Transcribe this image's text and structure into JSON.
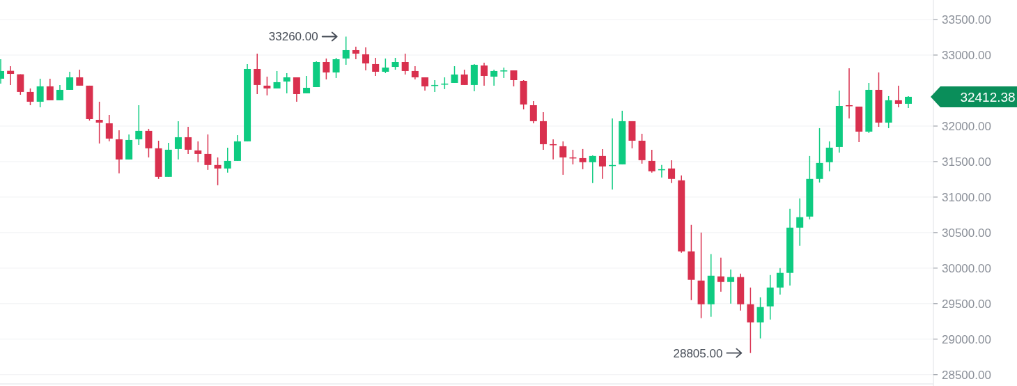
{
  "chart_data": {
    "type": "candlestick",
    "categories": [
      null,
      null,
      null,
      null,
      null,
      null,
      null,
      null,
      null,
      null,
      null,
      null,
      null,
      null,
      null,
      null,
      null,
      null,
      null,
      null,
      null,
      null,
      null,
      null,
      null,
      null,
      null,
      null,
      null,
      null,
      null,
      null,
      null,
      null,
      null,
      null,
      null,
      null,
      null,
      null,
      null,
      null,
      null,
      null,
      null,
      null,
      null,
      null,
      null,
      null,
      null,
      null,
      null,
      null,
      null,
      null,
      null,
      null,
      null,
      null,
      null,
      null,
      null,
      null,
      null,
      null,
      null,
      null,
      null,
      null,
      null,
      null,
      null,
      null,
      null,
      null,
      null,
      null,
      null,
      null,
      null,
      null,
      null,
      null,
      null,
      null,
      null,
      null,
      null,
      null,
      null,
      null,
      null
    ],
    "ohlc": [
      [
        32667,
        32941,
        32598,
        32775
      ],
      [
        32778,
        32843,
        32579,
        32735
      ],
      [
        32729,
        32729,
        32441,
        32481
      ],
      [
        32481,
        32530,
        32294,
        32343
      ],
      [
        32343,
        32667,
        32265,
        32559
      ],
      [
        32559,
        32667,
        32363,
        32363
      ],
      [
        32363,
        32579,
        32363,
        32510
      ],
      [
        32510,
        32765,
        32510,
        32686
      ],
      [
        32686,
        32794,
        32569,
        32569
      ],
      [
        32569,
        32569,
        32078,
        32098
      ],
      [
        32088,
        32343,
        31755,
        32049
      ],
      [
        32039,
        32157,
        31785,
        31824
      ],
      [
        31814,
        31941,
        31334,
        31530
      ],
      [
        31530,
        31883,
        31530,
        31804
      ],
      [
        31814,
        32294,
        31735,
        31932
      ],
      [
        31932,
        31961,
        31559,
        31687
      ],
      [
        31687,
        31794,
        31256,
        31285
      ],
      [
        31285,
        31765,
        31285,
        31667
      ],
      [
        31677,
        32069,
        31530,
        31843
      ],
      [
        31843,
        31990,
        31608,
        31667
      ],
      [
        31657,
        31785,
        31491,
        31608
      ],
      [
        31608,
        31883,
        31383,
        31452
      ],
      [
        31452,
        31559,
        31167,
        31403
      ],
      [
        31403,
        31696,
        31344,
        31510
      ],
      [
        31510,
        31873,
        31510,
        31785
      ],
      [
        31785,
        32873,
        31785,
        32804
      ],
      [
        32804,
        33020,
        32451,
        32579
      ],
      [
        32569,
        32696,
        32432,
        32530
      ],
      [
        32530,
        32775,
        32530,
        32618
      ],
      [
        32627,
        32745,
        32461,
        32686
      ],
      [
        32686,
        32686,
        32343,
        32451
      ],
      [
        32461,
        32706,
        32461,
        32539
      ],
      [
        32549,
        32912,
        32549,
        32902
      ],
      [
        32902,
        32951,
        32657,
        32755
      ],
      [
        32755,
        32961,
        32677,
        32941
      ],
      [
        32951,
        33260,
        32863,
        33069
      ],
      [
        33069,
        33118,
        32941,
        33020
      ],
      [
        33010,
        33108,
        32784,
        32882
      ],
      [
        32873,
        32961,
        32706,
        32765
      ],
      [
        32765,
        32951,
        32745,
        32824
      ],
      [
        32833,
        32961,
        32794,
        32902
      ],
      [
        32902,
        33020,
        32726,
        32775
      ],
      [
        32775,
        32843,
        32657,
        32686
      ],
      [
        32686,
        32686,
        32500,
        32559
      ],
      [
        32569,
        32647,
        32481,
        32579
      ],
      [
        32588,
        32686,
        32520,
        32598
      ],
      [
        32608,
        32843,
        32608,
        32726
      ],
      [
        32726,
        32794,
        32579,
        32579
      ],
      [
        32579,
        32873,
        32490,
        32863
      ],
      [
        32853,
        32892,
        32569,
        32706
      ],
      [
        32696,
        32794,
        32569,
        32775
      ],
      [
        32775,
        32824,
        32677,
        32784
      ],
      [
        32784,
        32784,
        32559,
        32647
      ],
      [
        32637,
        32647,
        32235,
        32304
      ],
      [
        32294,
        32353,
        32039,
        32069
      ],
      [
        32069,
        32196,
        31667,
        31745
      ],
      [
        31745,
        31814,
        31530,
        31735
      ],
      [
        31716,
        31785,
        31314,
        31559
      ],
      [
        31559,
        31667,
        31461,
        31549
      ],
      [
        31549,
        31677,
        31393,
        31491
      ],
      [
        31491,
        31588,
        31197,
        31579
      ],
      [
        31579,
        31677,
        31256,
        31432
      ],
      [
        31442,
        32108,
        31108,
        31452
      ],
      [
        31461,
        32216,
        31461,
        32069
      ],
      [
        32069,
        32069,
        31687,
        31794
      ],
      [
        31794,
        31892,
        31471,
        31520
      ],
      [
        31510,
        31667,
        31344,
        31363
      ],
      [
        31383,
        31452,
        31275,
        31393
      ],
      [
        31403,
        31520,
        31197,
        31256
      ],
      [
        31236,
        31305,
        30217,
        30236
      ],
      [
        30236,
        30609,
        29550,
        29835
      ],
      [
        29825,
        30501,
        29296,
        29492
      ],
      [
        29492,
        30197,
        29315,
        29893
      ],
      [
        29884,
        30148,
        29668,
        29805
      ],
      [
        29805,
        29982,
        29501,
        29874
      ],
      [
        29874,
        29923,
        29403,
        29492
      ],
      [
        29492,
        29727,
        28805,
        29237
      ],
      [
        29237,
        29590,
        29011,
        29452
      ],
      [
        29462,
        29903,
        29276,
        29727
      ],
      [
        29727,
        30001,
        29629,
        29933
      ],
      [
        29933,
        30834,
        29756,
        30570
      ],
      [
        30570,
        30981,
        30315,
        30717
      ],
      [
        30726,
        31579,
        30687,
        31256
      ],
      [
        31256,
        31971,
        31206,
        31481
      ],
      [
        31491,
        31785,
        31363,
        31696
      ],
      [
        31706,
        32500,
        31628,
        32284
      ],
      [
        32294,
        32814,
        32108,
        32284
      ],
      [
        32274,
        32274,
        31775,
        31922
      ],
      [
        31922,
        32608,
        31902,
        32510
      ],
      [
        32510,
        32755,
        31990,
        32049
      ],
      [
        32049,
        32422,
        31971,
        32363
      ],
      [
        32363,
        32569,
        32265,
        32314
      ],
      [
        32314,
        32422,
        32255,
        32412.38
      ]
    ],
    "colors": [
      "#0ecb81",
      "#d9304e",
      "#d9304e",
      "#d9304e",
      "#0ecb81",
      "#d9304e",
      "#0ecb81",
      "#0ecb81",
      "#d9304e",
      "#d9304e",
      "#d9304e",
      "#d9304e",
      "#d9304e",
      "#0ecb81",
      "#0ecb81",
      "#d9304e",
      "#d9304e",
      "#0ecb81",
      "#0ecb81",
      "#d9304e",
      "#d9304e",
      "#d9304e",
      "#d9304e",
      "#0ecb81",
      "#0ecb81",
      "#0ecb81",
      "#d9304e",
      "#d9304e",
      "#0ecb81",
      "#0ecb81",
      "#d9304e",
      "#0ecb81",
      "#0ecb81",
      "#d9304e",
      "#0ecb81",
      "#0ecb81",
      "#d9304e",
      "#d9304e",
      "#d9304e",
      "#0ecb81",
      "#0ecb81",
      "#d9304e",
      "#d9304e",
      "#d9304e",
      "#0ecb81",
      "#0ecb81",
      "#0ecb81",
      "#d9304e",
      "#0ecb81",
      "#d9304e",
      "#0ecb81",
      "#0ecb81",
      "#d9304e",
      "#d9304e",
      "#d9304e",
      "#d9304e",
      "#d9304e",
      "#d9304e",
      "#d9304e",
      "#d9304e",
      "#0ecb81",
      "#d9304e",
      "#0ecb81",
      "#0ecb81",
      "#d9304e",
      "#d9304e",
      "#d9304e",
      "#0ecb81",
      "#d9304e",
      "#d9304e",
      "#d9304e",
      "#d9304e",
      "#0ecb81",
      "#d9304e",
      "#0ecb81",
      "#d9304e",
      "#d9304e",
      "#0ecb81",
      "#0ecb81",
      "#0ecb81",
      "#0ecb81",
      "#0ecb81",
      "#0ecb81",
      "#0ecb81",
      "#0ecb81",
      "#0ecb81",
      "#d9304e",
      "#d9304e",
      "#0ecb81",
      "#d9304e",
      "#0ecb81",
      "#d9304e",
      "#0ecb81"
    ],
    "ylim": [
      28380,
      33775
    ],
    "yticks": [
      {
        "value": 28500,
        "label": "28500.00"
      },
      {
        "value": 29000,
        "label": "29000.00"
      },
      {
        "value": 29500,
        "label": "29500.00"
      },
      {
        "value": 30000,
        "label": "30000.00"
      },
      {
        "value": 30500,
        "label": "30500.00"
      },
      {
        "value": 31000,
        "label": "31000.00"
      },
      {
        "value": 31500,
        "label": "31500.00"
      },
      {
        "value": 32000,
        "label": "32000.00"
      },
      {
        "value": 33000,
        "label": "33000.00"
      },
      {
        "value": 33500,
        "label": "33500.00"
      }
    ],
    "grid": "y",
    "annotations": [
      "33260.00",
      "28805.00",
      "32412.38"
    ]
  }
}
